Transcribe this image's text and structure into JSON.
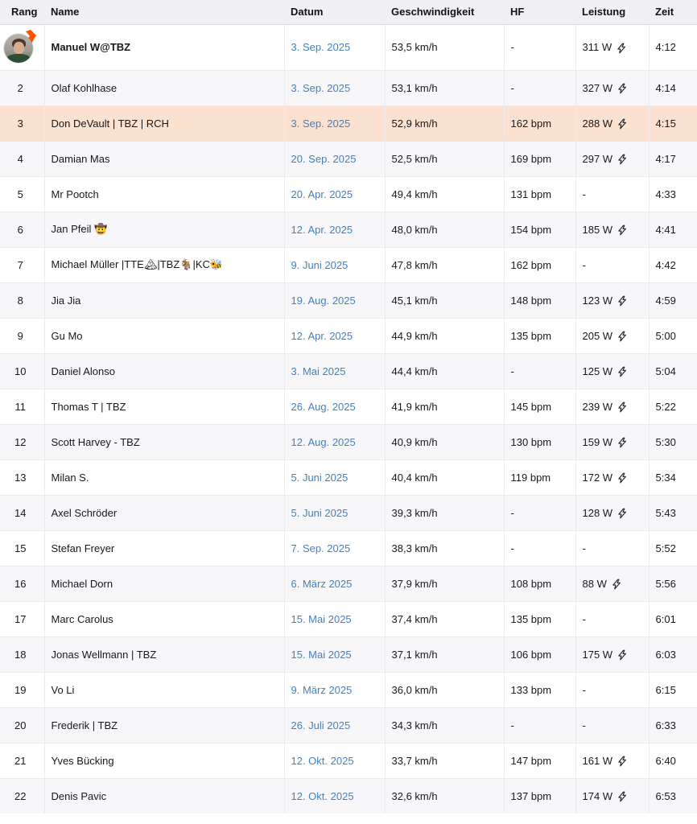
{
  "table": {
    "columns": [
      {
        "key": "rank",
        "label": "Rang"
      },
      {
        "key": "name",
        "label": "Name"
      },
      {
        "key": "date",
        "label": "Datum"
      },
      {
        "key": "speed",
        "label": "Geschwindigkeit"
      },
      {
        "key": "hf",
        "label": "HF"
      },
      {
        "key": "power",
        "label": "Leistung"
      },
      {
        "key": "time",
        "label": "Zeit"
      }
    ],
    "rows": [
      {
        "rank": "",
        "avatar": true,
        "bold": true,
        "name": "Manuel W@TBZ",
        "date": "3. Sep. 2025",
        "speed": "53,5 km/h",
        "hf": "-",
        "power": "311 W",
        "bolt": true,
        "time": "4:12"
      },
      {
        "rank": "2",
        "name": "Olaf Kohlhase",
        "date": "3. Sep. 2025",
        "speed": "53,1 km/h",
        "hf": "-",
        "power": "327 W",
        "bolt": true,
        "time": "4:14"
      },
      {
        "rank": "3",
        "highlighted": true,
        "name": "Don DeVault | TBZ | RCH",
        "date": "3. Sep. 2025",
        "speed": "52,9 km/h",
        "hf": "162 bpm",
        "power": "288 W",
        "bolt": true,
        "time": "4:15"
      },
      {
        "rank": "4",
        "name": "Damian Mas",
        "date": "20. Sep. 2025",
        "speed": "52,5 km/h",
        "hf": "169 bpm",
        "power": "297 W",
        "bolt": true,
        "time": "4:17"
      },
      {
        "rank": "5",
        "name": "Mr Pootch",
        "date": "20. Apr. 2025",
        "speed": "49,4 km/h",
        "hf": "131 bpm",
        "power": "-",
        "bolt": false,
        "time": "4:33"
      },
      {
        "rank": "6",
        "name": "Jan Pfeil 🤠",
        "date": "12. Apr. 2025",
        "speed": "48,0 km/h",
        "hf": "154 bpm",
        "power": "185 W",
        "bolt": true,
        "time": "4:41"
      },
      {
        "rank": "7",
        "name": "Michael Müller |TTE🏔|TBZ🐐|KC🐝",
        "date": "9. Juni 2025",
        "speed": "47,8 km/h",
        "hf": "162 bpm",
        "power": "-",
        "bolt": false,
        "time": "4:42"
      },
      {
        "rank": "8",
        "name": "Jia Jia",
        "date": "19. Aug. 2025",
        "speed": "45,1 km/h",
        "hf": "148 bpm",
        "power": "123 W",
        "bolt": true,
        "time": "4:59"
      },
      {
        "rank": "9",
        "name": "Gu Mo",
        "date": "12. Apr. 2025",
        "speed": "44,9 km/h",
        "hf": "135 bpm",
        "power": "205 W",
        "bolt": true,
        "time": "5:00"
      },
      {
        "rank": "10",
        "name": "Daniel Alonso",
        "date": "3. Mai 2025",
        "speed": "44,4 km/h",
        "hf": "-",
        "power": "125 W",
        "bolt": true,
        "time": "5:04"
      },
      {
        "rank": "11",
        "name": "Thomas T | TBZ",
        "date": "26. Aug. 2025",
        "speed": "41,9 km/h",
        "hf": "145 bpm",
        "power": "239 W",
        "bolt": true,
        "time": "5:22"
      },
      {
        "rank": "12",
        "name": "Scott Harvey - TBZ",
        "date": "12. Aug. 2025",
        "speed": "40,9 km/h",
        "hf": "130 bpm",
        "power": "159 W",
        "bolt": true,
        "time": "5:30"
      },
      {
        "rank": "13",
        "name": "Milan S.",
        "date": "5. Juni 2025",
        "speed": "40,4 km/h",
        "hf": "119 bpm",
        "power": "172 W",
        "bolt": true,
        "time": "5:34"
      },
      {
        "rank": "14",
        "name": "Axel Schröder",
        "date": "5. Juni 2025",
        "speed": "39,3 km/h",
        "hf": "-",
        "power": "128 W",
        "bolt": true,
        "time": "5:43"
      },
      {
        "rank": "15",
        "name": "Stefan Freyer",
        "date": "7. Sep. 2025",
        "speed": "38,3 km/h",
        "hf": "-",
        "power": "-",
        "bolt": false,
        "time": "5:52"
      },
      {
        "rank": "16",
        "name": "Michael Dorn",
        "date": "6. März 2025",
        "speed": "37,9 km/h",
        "hf": "108 bpm",
        "power": "88 W",
        "bolt": true,
        "time": "5:56"
      },
      {
        "rank": "17",
        "name": "Marc Carolus",
        "date": "15. Mai 2025",
        "speed": "37,4 km/h",
        "hf": "135 bpm",
        "power": "-",
        "bolt": false,
        "time": "6:01"
      },
      {
        "rank": "18",
        "name": "Jonas Wellmann | TBZ",
        "date": "15. Mai 2025",
        "speed": "37,1 km/h",
        "hf": "106 bpm",
        "power": "175 W",
        "bolt": true,
        "time": "6:03"
      },
      {
        "rank": "19",
        "name": "Vo Li",
        "date": "9. März 2025",
        "speed": "36,0 km/h",
        "hf": "133 bpm",
        "power": "-",
        "bolt": false,
        "time": "6:15"
      },
      {
        "rank": "20",
        "name": "Frederik | TBZ",
        "date": "26. Juli 2025",
        "speed": "34,3 km/h",
        "hf": "-",
        "power": "-",
        "bolt": false,
        "time": "6:33"
      },
      {
        "rank": "21",
        "name": "Yves Bücking",
        "date": "12. Okt. 2025",
        "speed": "33,7 km/h",
        "hf": "147 bpm",
        "power": "161 W",
        "bolt": true,
        "time": "6:40"
      },
      {
        "rank": "22",
        "name": "Denis Pavic",
        "date": "12. Okt. 2025",
        "speed": "32,6 km/h",
        "hf": "137 bpm",
        "power": "174 W",
        "bolt": true,
        "time": "6:53"
      }
    ],
    "icons": {
      "power_icon": "lightning-bolt-icon",
      "avatar_badge": "orange-arrow-icon"
    },
    "colors": {
      "header_bg": "#f0f0f2",
      "alt_row_bg": "#f7f7f9",
      "highlight_row_bg": "#fbe1d0",
      "date_link": "#4381bd",
      "avatar_arrow_orange": "#fc5200"
    }
  }
}
